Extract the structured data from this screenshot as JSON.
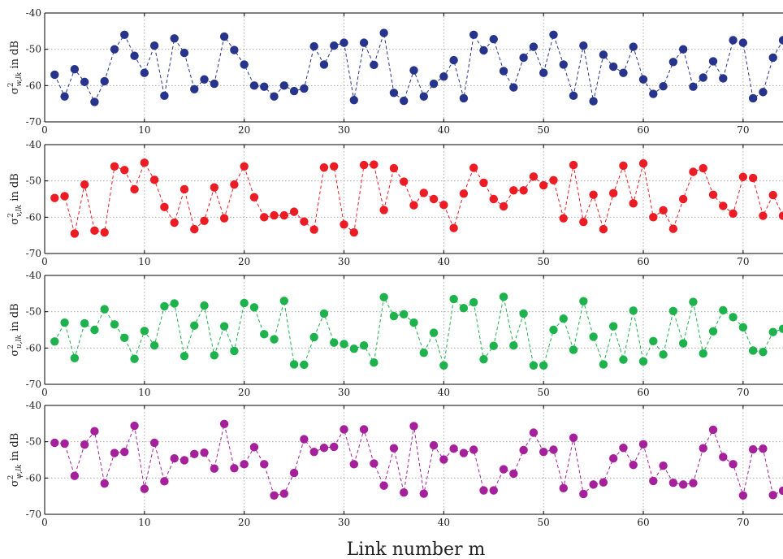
{
  "xlabel": "Link number m",
  "chart_data": [
    {
      "type": "line",
      "ylabel": "σ²_{w,lk} in dB",
      "xlim": [
        0,
        74
      ],
      "ylim": [
        -70,
        -40
      ],
      "xticks": [
        0,
        10,
        20,
        30,
        40,
        50,
        60,
        70
      ],
      "yticks": [
        -70,
        -60,
        -50,
        -40
      ],
      "grid": true,
      "series": [
        {
          "color": "#27348b",
          "x": [
            1,
            2,
            3,
            4,
            5,
            6,
            7,
            8,
            9,
            10,
            11,
            12,
            13,
            14,
            15,
            16,
            17,
            18,
            19,
            20,
            21,
            22,
            23,
            24,
            25,
            26,
            27,
            28,
            29,
            30,
            31,
            32,
            33,
            34,
            35,
            36,
            37,
            38,
            39,
            40,
            41,
            42,
            43,
            44,
            45,
            46,
            47,
            48,
            49,
            50,
            51,
            52,
            53,
            54,
            55,
            56,
            57,
            58,
            59,
            60,
            61,
            62,
            63,
            64,
            65,
            66,
            67,
            68,
            69,
            70,
            71,
            72,
            73,
            74
          ],
          "values": [
            -57,
            -63,
            -55.5,
            -59,
            -64.5,
            -58.8,
            -50,
            -46,
            -51.8,
            -56.5,
            -49,
            -62.8,
            -47,
            -51,
            -61,
            -58.3,
            -59.5,
            -46.5,
            -50.2,
            -54.2,
            -60,
            -60.3,
            -63,
            -60,
            -61.5,
            -60.8,
            -49.2,
            -54.2,
            -49,
            -48.2,
            -64,
            -48.2,
            -54.3,
            -45.5,
            -62,
            -64.2,
            -55.8,
            -63,
            -59.5,
            -57.5,
            -53,
            -63.5,
            -46,
            -50.3,
            -47.2,
            -56,
            -60.5,
            -52.3,
            -49.3,
            -56.5,
            -46,
            -54.2,
            -62.8,
            -49,
            -64.3,
            -51.5,
            -54.8,
            -56.5,
            -49.3,
            -58.3,
            -62.3,
            -60.2,
            -53.5,
            -50,
            -60.3,
            -57.8,
            -53.3,
            -58,
            -47.5,
            -48.2,
            -63.5,
            -61.8,
            -52.3,
            -47.5
          ]
        }
      ]
    },
    {
      "type": "line",
      "ylabel": "σ²_{v,lk} in dB",
      "xlim": [
        0,
        74
      ],
      "ylim": [
        -70,
        -40
      ],
      "xticks": [
        0,
        10,
        20,
        30,
        40,
        50,
        60,
        70
      ],
      "yticks": [
        -70,
        -60,
        -50,
        -40
      ],
      "grid": true,
      "series": [
        {
          "color": "#ec1c24",
          "x": [
            1,
            2,
            3,
            4,
            5,
            6,
            7,
            8,
            9,
            10,
            11,
            12,
            13,
            14,
            15,
            16,
            17,
            18,
            19,
            20,
            21,
            22,
            23,
            24,
            25,
            26,
            27,
            28,
            29,
            30,
            31,
            32,
            33,
            34,
            35,
            36,
            37,
            38,
            39,
            40,
            41,
            42,
            43,
            44,
            45,
            46,
            47,
            48,
            49,
            50,
            51,
            52,
            53,
            54,
            55,
            56,
            57,
            58,
            59,
            60,
            61,
            62,
            63,
            64,
            65,
            66,
            67,
            68,
            69,
            70,
            71,
            72,
            73,
            74
          ],
          "values": [
            -54.7,
            -54.2,
            -64.5,
            -51,
            -63.7,
            -64.2,
            -46,
            -47,
            -52.3,
            -45,
            -49.7,
            -57.2,
            -61.5,
            -52.3,
            -63.3,
            -61,
            -51.8,
            -60.3,
            -51,
            -46,
            -54.5,
            -60,
            -59.5,
            -59.5,
            -58.5,
            -61.2,
            -63.4,
            -46.3,
            -46,
            -62,
            -64.2,
            -45.6,
            -45.5,
            -58,
            -46.5,
            -50.2,
            -56.7,
            -53.3,
            -55,
            -56.6,
            -63,
            -53.5,
            -46.4,
            -50.5,
            -55,
            -57,
            -52.6,
            -52.6,
            -48.8,
            -51.2,
            -49.8,
            -60.3,
            -45.6,
            -61.3,
            -53.8,
            -63.3,
            -53.4,
            -45.8,
            -56.2,
            -45.2,
            -60,
            -58.1,
            -63.2,
            -55,
            -47.5,
            -46.5,
            -53.8,
            -56.9,
            -59,
            -48.9,
            -49.2,
            -59.6,
            -53.9,
            -59.6
          ]
        }
      ]
    },
    {
      "type": "line",
      "ylabel": "σ²_{u,lk} in dB",
      "xlim": [
        0,
        74
      ],
      "ylim": [
        -70,
        -40
      ],
      "xticks": [
        0,
        10,
        20,
        30,
        40,
        50,
        60,
        70
      ],
      "yticks": [
        -70,
        -60,
        -50,
        -40
      ],
      "grid": true,
      "series": [
        {
          "color": "#1db24b",
          "x": [
            1,
            2,
            3,
            4,
            5,
            6,
            7,
            8,
            9,
            10,
            11,
            12,
            13,
            14,
            15,
            16,
            17,
            18,
            19,
            20,
            21,
            22,
            23,
            24,
            25,
            26,
            27,
            28,
            29,
            30,
            31,
            32,
            33,
            34,
            35,
            36,
            37,
            38,
            39,
            40,
            41,
            42,
            43,
            44,
            45,
            46,
            47,
            48,
            49,
            50,
            51,
            52,
            53,
            54,
            55,
            56,
            57,
            58,
            59,
            60,
            61,
            62,
            63,
            64,
            65,
            66,
            67,
            68,
            69,
            70,
            71,
            72,
            73,
            74
          ],
          "values": [
            -58.2,
            -53,
            -62.8,
            -53.2,
            -55,
            -49.3,
            -53.5,
            -57.2,
            -63,
            -55.3,
            -59.3,
            -48.5,
            -47.7,
            -62.2,
            -53.8,
            -48.3,
            -62,
            -54,
            -60.8,
            -47.6,
            -48.8,
            -56.2,
            -57.6,
            -47,
            -64.5,
            -64.6,
            -57,
            -50.5,
            -58.5,
            -58.9,
            -60.2,
            -59.3,
            -64,
            -46,
            -51.2,
            -50.7,
            -53,
            -61.3,
            -55.8,
            -64.8,
            -46.5,
            -49,
            -47.4,
            -63.1,
            -59.4,
            -45.9,
            -59.3,
            -50.5,
            -64.8,
            -64.8,
            -55,
            -51.9,
            -60.5,
            -47.1,
            -56.9,
            -64.5,
            -54,
            -63.2,
            -49.7,
            -63.7,
            -58.1,
            -61.8,
            -49.8,
            -58.7,
            -47.3,
            -61.5,
            -55.4,
            -49.6,
            -51.5,
            -54.3,
            -60.7,
            -61.1,
            -55.6,
            -54.7
          ]
        }
      ]
    },
    {
      "type": "line",
      "ylabel": "σ²_{ψ,lk} in dB",
      "xlim": [
        0,
        74
      ],
      "ylim": [
        -70,
        -40
      ],
      "xticks": [
        0,
        10,
        20,
        30,
        40,
        50,
        60,
        70
      ],
      "yticks": [
        -70,
        -60,
        -50,
        -40
      ],
      "grid": true,
      "series": [
        {
          "color": "#a5219b",
          "x": [
            1,
            2,
            3,
            4,
            5,
            6,
            7,
            8,
            9,
            10,
            11,
            12,
            13,
            14,
            15,
            16,
            17,
            18,
            19,
            20,
            21,
            22,
            23,
            24,
            25,
            26,
            27,
            28,
            29,
            30,
            31,
            32,
            33,
            34,
            35,
            36,
            37,
            38,
            39,
            40,
            41,
            42,
            43,
            44,
            45,
            46,
            47,
            48,
            49,
            50,
            51,
            52,
            53,
            54,
            55,
            56,
            57,
            58,
            59,
            60,
            61,
            62,
            63,
            64,
            65,
            66,
            67,
            68,
            69,
            70,
            71,
            72,
            73,
            74
          ],
          "values": [
            -50.3,
            -50.5,
            -59.4,
            -50.8,
            -47.1,
            -61.5,
            -53.1,
            -52.8,
            -45.6,
            -63,
            -50.3,
            -60.9,
            -54.6,
            -55.1,
            -53.4,
            -53,
            -57.4,
            -45.1,
            -57.3,
            -56.2,
            -51.5,
            -56.2,
            -64.8,
            -64.3,
            -58.6,
            -49.3,
            -52.8,
            -51.7,
            -51.4,
            -46.6,
            -56.2,
            -46.6,
            -56,
            -62.1,
            -51.8,
            -64,
            -45.7,
            -64.3,
            -51,
            -54.9,
            -51.9,
            -53.1,
            -52.2,
            -63.4,
            -63.4,
            -57.6,
            -58.8,
            -52.3,
            -47.5,
            -52.8,
            -52.2,
            -62.8,
            -48.9,
            -64.4,
            -61.8,
            -61.2,
            -54.6,
            -51.7,
            -56.4,
            -50.7,
            -60.8,
            -56.6,
            -61.3,
            -61.8,
            -61.4,
            -51.8,
            -46.7,
            -54.2,
            -56.2,
            -64.8,
            -52.1,
            -51.9,
            -64.7,
            -63.5
          ]
        }
      ]
    }
  ]
}
